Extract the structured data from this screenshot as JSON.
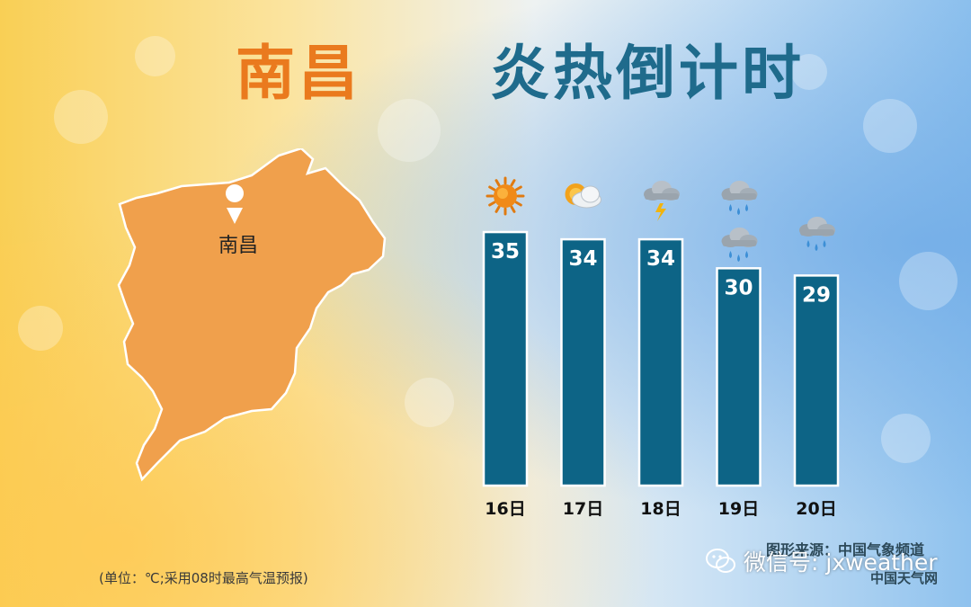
{
  "title": {
    "city": "南昌",
    "main": "炎热倒计时"
  },
  "map": {
    "city_label": "南昌",
    "fill_color": "#f0a04c"
  },
  "chart_data": {
    "type": "bar",
    "categories": [
      "16日",
      "17日",
      "18日",
      "19日",
      "20日"
    ],
    "values": [
      35,
      34,
      34,
      30,
      29
    ],
    "ylim": [
      0,
      36
    ],
    "bar_color": "#0d6486",
    "weather_icons": [
      [
        "sun-icon"
      ],
      [
        "sun-behind-cloud-icon"
      ],
      [
        "thunderstorm-icon"
      ],
      [
        "rain-cloud-icon",
        "rain-cloud-icon"
      ],
      [
        "rain-cloud-icon"
      ]
    ]
  },
  "notes": {
    "unit": "(单位：℃;采用08时最高气温预报)",
    "source": "图形来源：中国气象频道",
    "site": "中国天气网",
    "wechat": "微信号: jxweather"
  }
}
